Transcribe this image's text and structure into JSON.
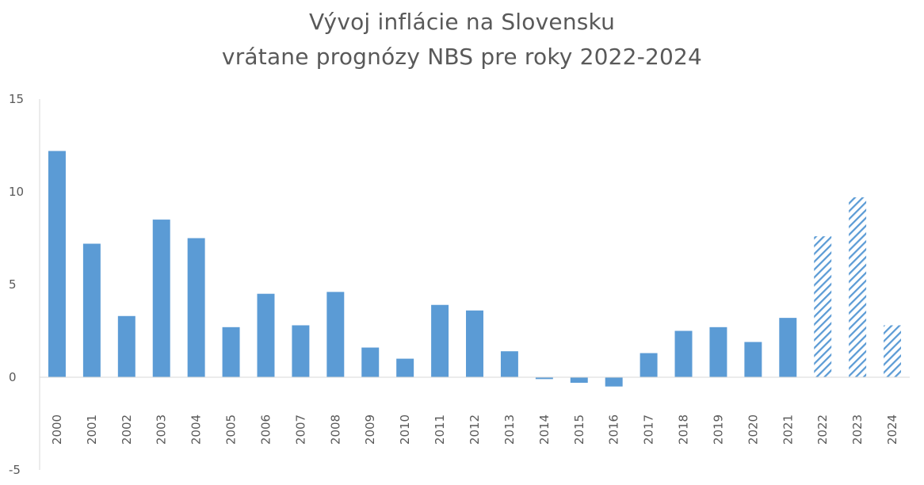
{
  "chart_data": {
    "type": "bar",
    "title": "Vývoj inflácie na Slovensku",
    "subtitle": "vrátane prognózy NBS pre roky 2022-2024",
    "xlabel": "",
    "ylabel": "",
    "ylim": [
      -5,
      15
    ],
    "yticks": [
      -5,
      0,
      5,
      10,
      15
    ],
    "grid": false,
    "legend": "none",
    "categories": [
      "2000",
      "2001",
      "2002",
      "2003",
      "2004",
      "2005",
      "2006",
      "2007",
      "2008",
      "2009",
      "2010",
      "2011",
      "2012",
      "2013",
      "2014",
      "2015",
      "2016",
      "2017",
      "2018",
      "2019",
      "2020",
      "2021",
      "2022",
      "2023",
      "2024"
    ],
    "values": [
      12.2,
      7.2,
      3.3,
      8.5,
      7.5,
      2.7,
      4.5,
      2.8,
      4.6,
      1.6,
      1.0,
      3.9,
      3.6,
      1.4,
      -0.1,
      -0.3,
      -0.5,
      1.3,
      2.5,
      2.7,
      1.9,
      3.2,
      7.6,
      9.7,
      2.8
    ],
    "forecast_categories": [
      "2022",
      "2023",
      "2024"
    ],
    "colors": {
      "bar": "#5b9bd5",
      "forecast_hatch": "#5b9bd5",
      "axis": "#d9d9d9",
      "text": "#595959"
    }
  }
}
